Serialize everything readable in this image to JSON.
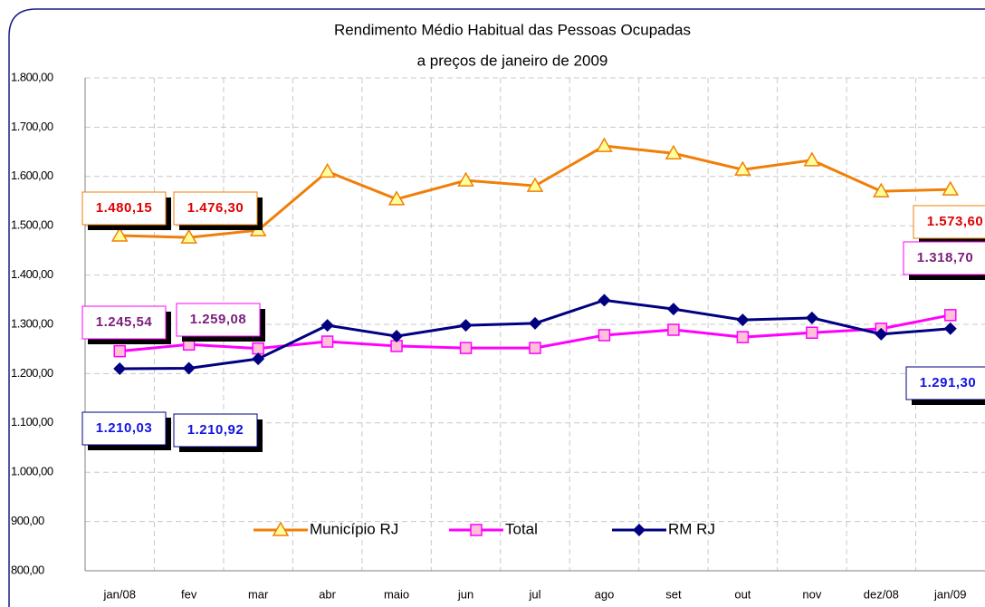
{
  "chart_data": {
    "type": "line",
    "title": "Rendimento Médio Habitual das Pessoas Ocupadas",
    "subtitle": "a preços de janeiro de 2009",
    "categories": [
      "jan/08",
      "fev",
      "mar",
      "abr",
      "maio",
      "jun",
      "jul",
      "ago",
      "set",
      "out",
      "nov",
      "dez/08",
      "jan/09"
    ],
    "series": [
      {
        "name": "Município RJ",
        "color": "#f07f09",
        "marker": "triangle",
        "label_color": "#e00000",
        "values": [
          1480.15,
          1476.3,
          1491,
          1610,
          1554,
          1592,
          1581,
          1662,
          1647,
          1614,
          1633,
          1570,
          1573.6
        ],
        "value_labels": {
          "0": "1.480,15",
          "1": "1.476,30",
          "12": "1.573,60"
        }
      },
      {
        "name": "Total",
        "color": "#ff00ff",
        "marker": "square",
        "label_color": "#7b1f7b",
        "values": [
          1245.54,
          1259.08,
          1251,
          1265,
          1256,
          1252,
          1252,
          1278,
          1289,
          1274,
          1283,
          1291,
          1318.7
        ],
        "value_labels": {
          "0": "1.245,54",
          "1": "1.259,08",
          "12": "1.318,70"
        }
      },
      {
        "name": "RM RJ",
        "color": "#000080",
        "marker": "diamond",
        "label_color": "#1414e0",
        "values": [
          1210.03,
          1210.92,
          1230,
          1298,
          1276,
          1298,
          1302,
          1349,
          1331,
          1309,
          1313,
          1280,
          1291.3
        ],
        "value_labels": {
          "0": "1.210,03",
          "1": "1.210,92",
          "12": "1.291,30"
        }
      }
    ],
    "ylim": [
      800,
      1800
    ],
    "yticks": [
      {
        "value": 800,
        "label": "800,00"
      },
      {
        "value": 900,
        "label": "900,00"
      },
      {
        "value": 1000,
        "label": "1.000,00"
      },
      {
        "value": 1100,
        "label": "1.100,00"
      },
      {
        "value": 1200,
        "label": "1.200,00"
      },
      {
        "value": 1300,
        "label": "1.300,00"
      },
      {
        "value": 1400,
        "label": "1.400,00"
      },
      {
        "value": 1500,
        "label": "1.500,00"
      },
      {
        "value": 1600,
        "label": "1.600,00"
      },
      {
        "value": 1700,
        "label": "1.700,00"
      },
      {
        "value": 1800,
        "label": "1.800,00"
      }
    ],
    "grid": true,
    "legend": "bottom"
  }
}
